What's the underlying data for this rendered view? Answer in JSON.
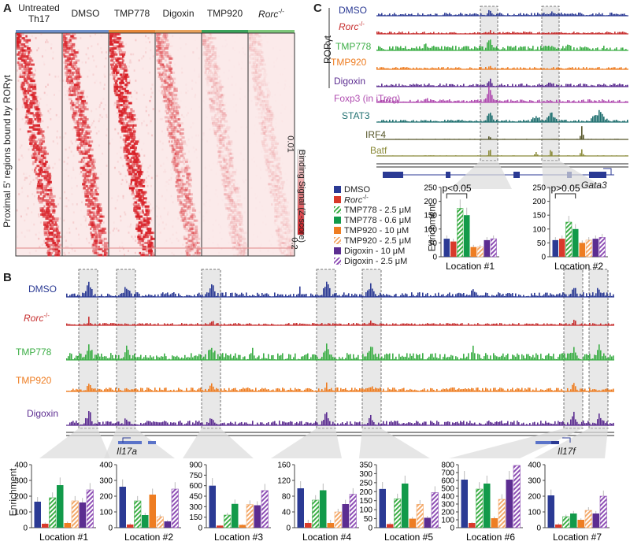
{
  "panel_a": {
    "letter": "A",
    "columns": [
      "Untreated Th17",
      "DMSO",
      "TMP778",
      "Digoxin",
      "TMP920",
      "Rorc-/-"
    ],
    "column_bar_colors": [
      "#6e8fc9",
      "#6e8fc9",
      "#e8883a",
      "#e8a25c",
      "#3aa25a",
      "#7ec77a"
    ],
    "ylabel": "Proximal 5' regions bound by RORγt",
    "colorbar_label": "Binding Signal (Z-score)",
    "colorbar_top": "0.01",
    "colorbar_bottom": "0.2"
  },
  "panel_b": {
    "letter": "B",
    "tracks": [
      {
        "name": "DMSO",
        "color": "#2b3a94",
        "light": "#8c95c6"
      },
      {
        "name": "Rorc-/-",
        "color": "#c62d2d",
        "light": "#e79a9a"
      },
      {
        "name": "TMP778",
        "color": "#3cae46",
        "light": "#9ad39e"
      },
      {
        "name": "TMP920",
        "color": "#ee7d22",
        "light": "#f6b98a"
      },
      {
        "name": "Digoxin",
        "color": "#5c2d91",
        "light": "#ab92cc"
      }
    ],
    "genes": [
      "Il17a",
      "Il17f"
    ],
    "ylabel": "Enrichment"
  },
  "panel_c": {
    "letter": "C",
    "ror_label": "RORγt",
    "tracks": [
      {
        "name": "DMSO",
        "color": "#2b3a94"
      },
      {
        "name": "Rorc-/-",
        "color": "#c62d2d"
      },
      {
        "name": "TMP778",
        "color": "#3cae46"
      },
      {
        "name": "TMP920",
        "color": "#ee7d22"
      },
      {
        "name": "Digoxin",
        "color": "#5c2d91"
      },
      {
        "name": "Foxp3 (in iTreg)",
        "color": "#b04cb0"
      },
      {
        "name": "STAT3",
        "color": "#1e6f6f"
      },
      {
        "name": "IRF4",
        "color": "#555528"
      },
      {
        "name": "Batf",
        "color": "#8b8b3a"
      }
    ],
    "gene": "Gata3",
    "ylabel": "Enrichment",
    "pvals": [
      "p<0.05",
      "p>0.05"
    ]
  },
  "legend": [
    {
      "label": "DMSO",
      "color": "#2b3a94",
      "hatch": false
    },
    {
      "label": "Rorc-/-",
      "color": "#d93a2b",
      "hatch": false
    },
    {
      "label": "TMP778 - 2.5 μM",
      "color": "#3cae46",
      "hatch": true
    },
    {
      "label": "TMP778 - 0.6 μM",
      "color": "#129a4a",
      "hatch": false
    },
    {
      "label": "TMP920 - 10 μM",
      "color": "#ee7d22",
      "hatch": false
    },
    {
      "label": "TMP920 - 2.5 μM",
      "color": "#f3a96a",
      "hatch": true
    },
    {
      "label": "Digoxin - 10 μM",
      "color": "#5c2d91",
      "hatch": false
    },
    {
      "label": "Digoxin - 2.5 μM",
      "color": "#8e4fb5",
      "hatch": true
    }
  ],
  "chart_data": [
    {
      "type": "bar",
      "title": "Location #1",
      "ylim": [
        0,
        400
      ],
      "yticks": [
        0,
        100,
        200,
        300,
        400
      ],
      "values": [
        165,
        25,
        190,
        270,
        30,
        170,
        160,
        240
      ]
    },
    {
      "type": "bar",
      "title": "Location #2",
      "ylim": [
        0,
        400
      ],
      "yticks": [
        0,
        100,
        200,
        300,
        400
      ],
      "values": [
        260,
        20,
        170,
        80,
        210,
        70,
        40,
        245
      ]
    },
    {
      "type": "bar",
      "title": "Location #3",
      "ylim": [
        0,
        900
      ],
      "yticks": [
        0,
        150,
        300,
        450,
        600,
        750,
        900
      ],
      "values": [
        600,
        30,
        180,
        340,
        40,
        330,
        320,
        530
      ]
    },
    {
      "type": "bar",
      "title": "Location #4",
      "ylim": [
        0,
        160
      ],
      "yticks": [
        0,
        40,
        80,
        120,
        160
      ],
      "values": [
        100,
        12,
        70,
        95,
        12,
        40,
        60,
        85
      ]
    },
    {
      "type": "bar",
      "title": "Location #5",
      "ylim": [
        0,
        350
      ],
      "yticks": [
        0,
        50,
        100,
        150,
        200,
        250,
        300,
        350
      ],
      "values": [
        215,
        20,
        160,
        245,
        50,
        130,
        55,
        195
      ]
    },
    {
      "type": "bar",
      "title": "Location #6",
      "ylim": [
        0,
        800
      ],
      "yticks": [
        0,
        100,
        200,
        300,
        400,
        500,
        600,
        700,
        800
      ],
      "values": [
        610,
        60,
        490,
        560,
        120,
        360,
        610,
        790
      ]
    },
    {
      "type": "bar",
      "title": "Location #7",
      "ylim": [
        0,
        400
      ],
      "yticks": [
        0,
        100,
        200,
        300,
        400
      ],
      "values": [
        205,
        20,
        70,
        90,
        50,
        110,
        90,
        200
      ]
    },
    {
      "type": "bar",
      "title": "Location #1",
      "ylim": [
        0,
        250
      ],
      "yticks": [
        0,
        50,
        100,
        150,
        200,
        250
      ],
      "values": [
        65,
        55,
        175,
        150,
        35,
        35,
        60,
        65
      ],
      "annotation": "p<0.05"
    },
    {
      "type": "bar",
      "title": "Location #2",
      "ylim": [
        0,
        250
      ],
      "yticks": [
        0,
        50,
        100,
        150,
        200,
        250
      ],
      "values": [
        60,
        65,
        125,
        100,
        50,
        60,
        65,
        70
      ],
      "annotation": "p>0.05"
    }
  ]
}
